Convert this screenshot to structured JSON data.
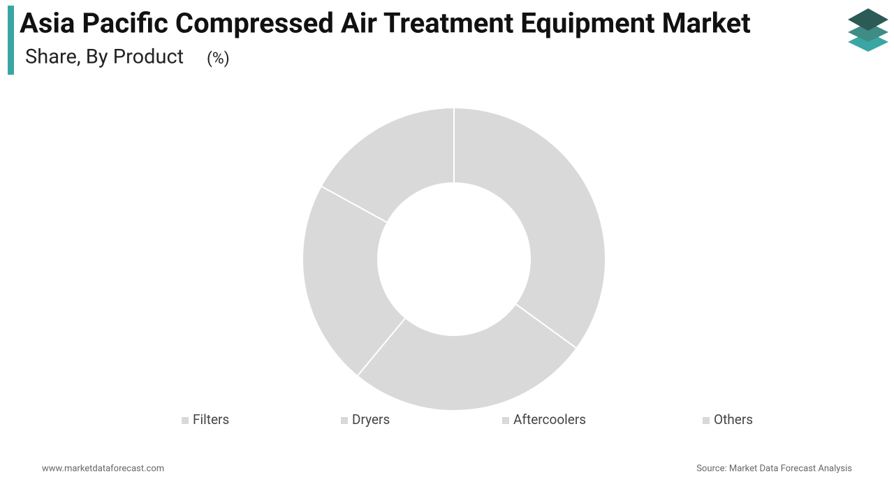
{
  "chart_data": {
    "type": "donut",
    "title": "Asia Pacific Compressed Air Treatment Equipment Market",
    "subtitle": "Share, By Product",
    "unit": "(%)",
    "categories": [
      "Filters",
      "Dryers",
      "Aftercoolers",
      "Others"
    ],
    "values": [
      35,
      26,
      22,
      17
    ],
    "colors": [
      "#d9d9d9",
      "#d9d9d9",
      "#d9d9d9",
      "#d9d9d9"
    ],
    "legend": "bottom"
  },
  "footer": {
    "website": "www.marketdataforecast.com",
    "source": "Source: Market Data Forecast Analysis"
  }
}
